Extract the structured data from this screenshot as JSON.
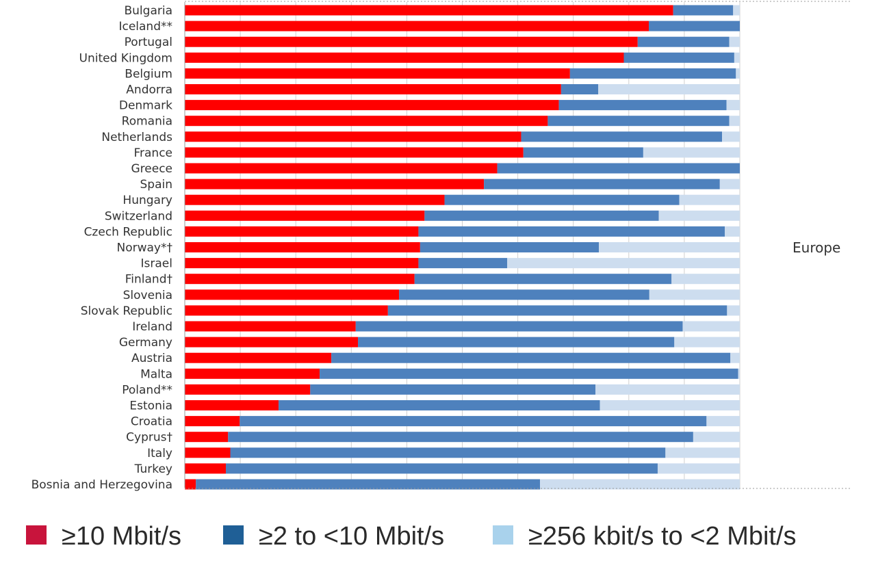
{
  "chart_data": {
    "type": "bar",
    "orientation": "horizontal",
    "stacked": true,
    "percent_scale": true,
    "xlim": [
      0,
      100
    ],
    "grid": true,
    "legend_position": "bottom",
    "region_label": "Europe",
    "categories": [
      "Bulgaria",
      "Iceland**",
      "Portugal",
      "United Kingdom",
      "Belgium",
      "Andorra",
      "Denmark",
      "Romania",
      "Netherlands",
      "France",
      "Greece",
      "Spain",
      "Hungary",
      "Switzerland",
      "Czech Republic",
      "Norway*†",
      "Israel",
      "Finland†",
      "Slovenia",
      "Slovak Republic",
      "Ireland",
      "Germany",
      "Austria",
      "Malta",
      "Poland**",
      "Estonia",
      "Croatia",
      "Cyprus†",
      "Italy",
      "Turkey",
      "Bosnia and Herzegovina"
    ],
    "series": [
      {
        "name": "≥10 Mbit/s",
        "color": "#ff0000",
        "values": [
          88,
          83.6,
          81.6,
          79.1,
          69.4,
          67.8,
          67.4,
          65.4,
          60.6,
          61,
          56.3,
          53.9,
          46.8,
          43.2,
          42.1,
          42.4,
          42.1,
          41.4,
          38.6,
          36.6,
          30.8,
          31.2,
          26.4,
          24.3,
          22.6,
          16.9,
          9.9,
          7.8,
          8.2,
          7.4,
          2
        ]
      },
      {
        "name": "≥2 to <10 Mbit/s",
        "color": "#4e81bd",
        "values": [
          10.8,
          16.4,
          16.5,
          19.9,
          29.9,
          6.7,
          30.2,
          32.7,
          36.2,
          21.6,
          43.7,
          42.5,
          42.3,
          42.2,
          55.2,
          32.2,
          16,
          46.3,
          45.1,
          61.1,
          58.9,
          57,
          71.9,
          75.4,
          51.4,
          57.9,
          84.1,
          83.8,
          78.4,
          77.8,
          62
        ]
      },
      {
        "name": "≥256 kbit/s to <2 Mbit/s",
        "color": "#cdddef",
        "values": [
          1.2,
          0,
          1.9,
          1,
          0.7,
          25.5,
          2.4,
          1.9,
          3.2,
          17.4,
          0,
          3.6,
          10.9,
          14.6,
          2.7,
          25.4,
          41.9,
          12.3,
          16.3,
          2.3,
          10.3,
          11.8,
          1.7,
          0.3,
          26,
          25.2,
          6,
          8.4,
          13.4,
          14.8,
          36
        ]
      }
    ],
    "legend": [
      {
        "label": "≥10 Mbit/s",
        "color": "#c8143c"
      },
      {
        "label": "≥2 to <10 Mbit/s",
        "color": "#1f5f96"
      },
      {
        "label": "≥256 kbit/s to <2 Mbit/s",
        "color": "#a9d2ec"
      }
    ]
  }
}
